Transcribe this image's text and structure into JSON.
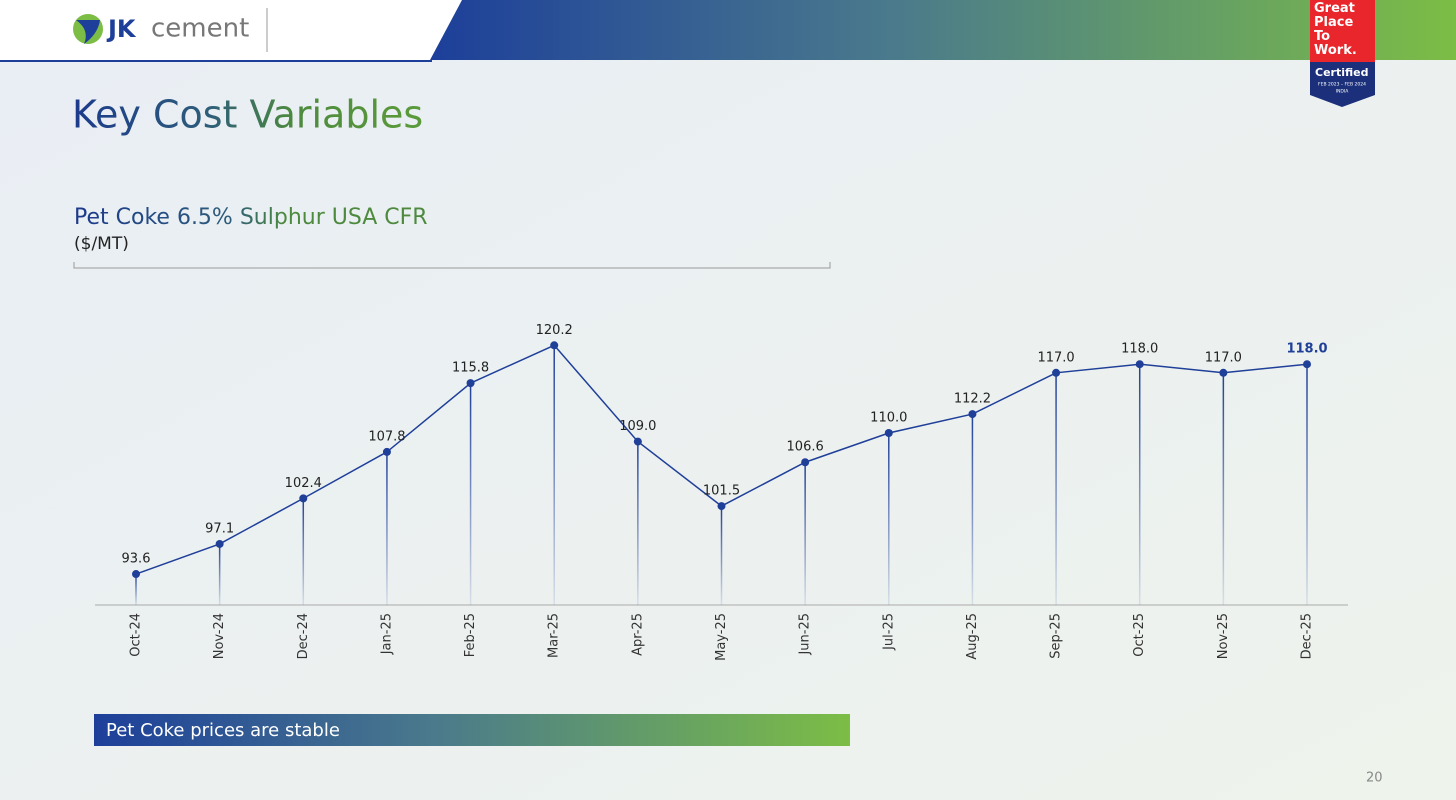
{
  "logo": {
    "brand": "JK",
    "name": "cement"
  },
  "badge": {
    "lines": [
      "Great",
      "Place",
      "To",
      "Work."
    ],
    "certified": "Certified",
    "period": "FEB 2023 – FEB 2024",
    "country": "INDIA"
  },
  "title": "Key Cost Variables",
  "chart_data": {
    "type": "line",
    "title": "Pet Coke 6.5% Sulphur USA CFR",
    "subtitle": "($/MT)",
    "categories": [
      "Oct-24",
      "Nov-24",
      "Dec-24",
      "Jan-25",
      "Feb-25",
      "Mar-25",
      "Apr-25",
      "May-25",
      "Jun-25",
      "Jul-25",
      "Aug-25",
      "Sep-25",
      "Oct-25",
      "Nov-25",
      "Dec-25"
    ],
    "values": [
      93.6,
      97.1,
      102.4,
      107.8,
      115.8,
      120.2,
      109.0,
      101.5,
      106.6,
      110.0,
      112.2,
      117.0,
      118.0,
      117.0,
      118.0
    ],
    "value_labels": [
      "93.6",
      "97.1",
      "102.4",
      "107.8",
      "115.8",
      "120.2",
      "109.0",
      "101.5",
      "106.6",
      "110.0",
      "112.2",
      "117.0",
      "118.0",
      "117.0",
      "118.0"
    ],
    "color": "#1f3f99",
    "ylim": [
      90,
      125
    ]
  },
  "callout": "Pet Coke prices are stable",
  "page_number": "20"
}
